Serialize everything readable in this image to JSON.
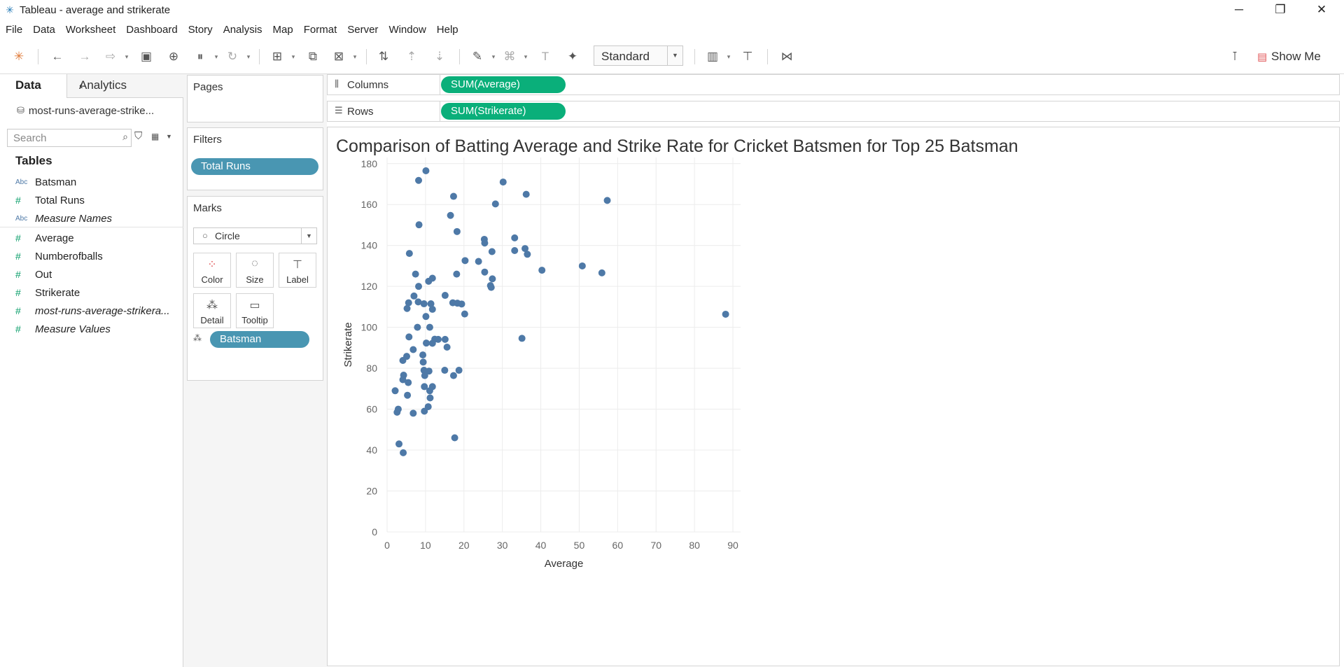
{
  "window": {
    "title": "Tableau - average and strikerate"
  },
  "menu": [
    "File",
    "Data",
    "Worksheet",
    "Dashboard",
    "Story",
    "Analysis",
    "Map",
    "Format",
    "Server",
    "Window",
    "Help"
  ],
  "toolbar": {
    "fit_value": "Standard",
    "show_me_label": "Show Me"
  },
  "data_pane": {
    "tab_data": "Data",
    "tab_analytics": "Analytics",
    "datasource": "most-runs-average-strike...",
    "search_placeholder": "Search",
    "tables_heading": "Tables",
    "fields": [
      {
        "type": "Abc",
        "name": "Batsman",
        "italic": false
      },
      {
        "type": "#",
        "name": "Total Runs",
        "italic": false
      },
      {
        "type": "Abc",
        "name": "Measure Names",
        "italic": true
      },
      {
        "type": "#",
        "name": "Average",
        "italic": false
      },
      {
        "type": "#",
        "name": "Numberofballs",
        "italic": false
      },
      {
        "type": "#",
        "name": "Out",
        "italic": false
      },
      {
        "type": "#",
        "name": "Strikerate",
        "italic": false
      },
      {
        "type": "#",
        "name": "most-runs-average-strikera...",
        "italic": true
      },
      {
        "type": "#",
        "name": "Measure Values",
        "italic": true
      }
    ]
  },
  "cards": {
    "pages_label": "Pages",
    "filters_label": "Filters",
    "filter_pill": "Total Runs",
    "marks_label": "Marks",
    "mark_type": "Circle",
    "buttons": {
      "color": "Color",
      "size": "Size",
      "label": "Label",
      "detail": "Detail",
      "tooltip": "Tooltip"
    },
    "detail_pill": "Batsman"
  },
  "shelves": {
    "columns_label": "Columns",
    "columns_pill": "SUM(Average)",
    "rows_label": "Rows",
    "rows_pill": "SUM(Strikerate)"
  },
  "colors": {
    "mark": "#4e79a7",
    "green_pill": "#0aaf7a",
    "blue_pill": "#4996b2"
  },
  "chart_data": {
    "type": "scatter",
    "title": "Comparison of Batting Average and Strike Rate for Cricket Batsmen for Top 25 Batsman",
    "xlabel": "Average",
    "ylabel": "Strikerate",
    "xlim": [
      0,
      92
    ],
    "ylim": [
      0,
      183
    ],
    "xticks": [
      0,
      10,
      20,
      30,
      40,
      50,
      60,
      70,
      80,
      90
    ],
    "yticks": [
      0,
      20,
      40,
      60,
      80,
      100,
      120,
      140,
      160,
      180
    ],
    "grid": true,
    "points": [
      [
        10.1,
        176.5
      ],
      [
        8.2,
        171.8
      ],
      [
        30.2,
        171.0
      ],
      [
        17.3,
        164.0
      ],
      [
        36.2,
        165.0
      ],
      [
        28.2,
        160.3
      ],
      [
        57.3,
        162.0
      ],
      [
        16.5,
        154.7
      ],
      [
        8.3,
        150.1
      ],
      [
        18.2,
        146.8
      ],
      [
        25.3,
        143.0
      ],
      [
        25.4,
        141.2
      ],
      [
        33.2,
        143.7
      ],
      [
        27.3,
        137.0
      ],
      [
        33.2,
        137.5
      ],
      [
        35.9,
        138.5
      ],
      [
        36.5,
        135.7
      ],
      [
        5.8,
        136.1
      ],
      [
        20.3,
        132.6
      ],
      [
        23.8,
        132.2
      ],
      [
        50.8,
        130.0
      ],
      [
        40.3,
        127.9
      ],
      [
        55.9,
        126.6
      ],
      [
        25.4,
        127.0
      ],
      [
        7.4,
        126.0
      ],
      [
        18.1,
        126.0
      ],
      [
        11.8,
        124.0
      ],
      [
        27.4,
        123.7
      ],
      [
        10.8,
        122.5
      ],
      [
        8.2,
        120.0
      ],
      [
        27.1,
        119.5
      ],
      [
        26.9,
        120.4
      ],
      [
        15.1,
        115.6
      ],
      [
        7.0,
        115.3
      ],
      [
        5.6,
        112.0
      ],
      [
        8.1,
        112.4
      ],
      [
        11.4,
        111.5
      ],
      [
        9.6,
        111.5
      ],
      [
        17.1,
        112.0
      ],
      [
        18.3,
        111.8
      ],
      [
        19.4,
        111.4
      ],
      [
        5.2,
        109.2
      ],
      [
        11.8,
        108.8
      ],
      [
        20.2,
        106.5
      ],
      [
        88.1,
        106.4
      ],
      [
        10.1,
        105.3
      ],
      [
        7.9,
        100.0
      ],
      [
        11.1,
        100.0
      ],
      [
        5.7,
        95.3
      ],
      [
        12.4,
        94.2
      ],
      [
        13.3,
        94.1
      ],
      [
        15.1,
        94.1
      ],
      [
        35.1,
        94.6
      ],
      [
        10.2,
        92.3
      ],
      [
        11.8,
        92.2
      ],
      [
        15.6,
        90.3
      ],
      [
        6.8,
        89.1
      ],
      [
        9.3,
        86.5
      ],
      [
        5.1,
        85.8
      ],
      [
        4.1,
        83.8
      ],
      [
        9.4,
        83.0
      ],
      [
        9.6,
        79.0
      ],
      [
        15.0,
        79.0
      ],
      [
        18.7,
        79.0
      ],
      [
        10.9,
        78.6
      ],
      [
        4.3,
        76.6
      ],
      [
        9.8,
        76.4
      ],
      [
        17.3,
        76.4
      ],
      [
        4.1,
        74.4
      ],
      [
        5.5,
        73.0
      ],
      [
        2.1,
        69.0
      ],
      [
        9.7,
        71.0
      ],
      [
        11.8,
        71.0
      ],
      [
        11.1,
        69.0
      ],
      [
        5.3,
        66.8
      ],
      [
        11.2,
        65.5
      ],
      [
        10.7,
        61.2
      ],
      [
        2.9,
        60.0
      ],
      [
        2.6,
        58.5
      ],
      [
        6.8,
        58.0
      ],
      [
        9.7,
        59.0
      ],
      [
        17.6,
        46.0
      ],
      [
        3.1,
        43.0
      ],
      [
        4.2,
        38.7
      ]
    ]
  }
}
